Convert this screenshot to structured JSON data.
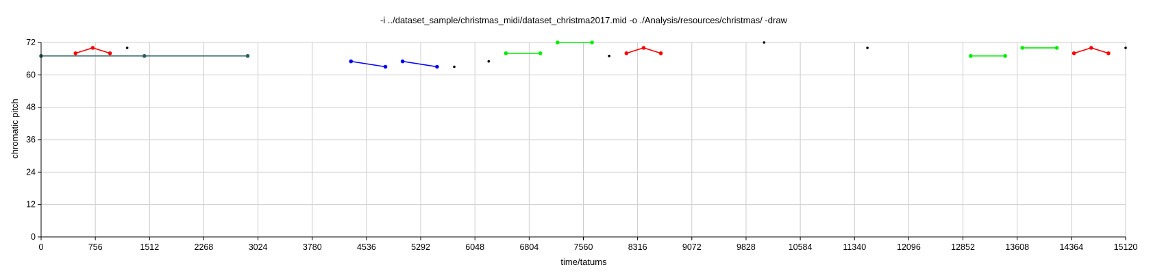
{
  "chart_data": {
    "type": "line",
    "title": "-i ../dataset_sample/christmas_midi/dataset_christma2017.mid -o ./Analysis/resources/christmas/ -draw",
    "xlabel": "time/tatums",
    "ylabel": "chromatic pitch",
    "xlim": [
      0,
      15120
    ],
    "ylim": [
      0,
      72
    ],
    "xticks": [
      0,
      756,
      1512,
      2268,
      3024,
      3780,
      4536,
      5292,
      6048,
      6804,
      7560,
      8316,
      9072,
      9828,
      10584,
      11340,
      12096,
      12852,
      13608,
      14364,
      15120
    ],
    "yticks": [
      0,
      12,
      24,
      36,
      48,
      60,
      72
    ],
    "grid": true,
    "series": [
      {
        "color": "#2f5f5f",
        "points": [
          [
            0,
            67
          ],
          [
            1440,
            67
          ],
          [
            2880,
            67
          ]
        ]
      },
      {
        "color": "#ff0000",
        "points": [
          [
            480,
            68
          ],
          [
            720,
            70
          ],
          [
            960,
            68
          ]
        ]
      },
      {
        "color": "#0000ff",
        "points": [
          [
            4320,
            65
          ],
          [
            4800,
            63
          ]
        ]
      },
      {
        "color": "#0000ff",
        "points": [
          [
            5040,
            65
          ],
          [
            5520,
            63
          ]
        ]
      },
      {
        "color": "#00ee00",
        "points": [
          [
            6480,
            68
          ],
          [
            6960,
            68
          ]
        ]
      },
      {
        "color": "#00ee00",
        "points": [
          [
            7200,
            72
          ],
          [
            7680,
            72
          ]
        ]
      },
      {
        "color": "#ff0000",
        "points": [
          [
            8160,
            68
          ],
          [
            8400,
            70
          ],
          [
            8640,
            68
          ]
        ]
      },
      {
        "color": "#00ee00",
        "points": [
          [
            12960,
            67
          ],
          [
            13440,
            67
          ]
        ]
      },
      {
        "color": "#00ee00",
        "points": [
          [
            13680,
            70
          ],
          [
            14160,
            70
          ]
        ]
      },
      {
        "color": "#ff0000",
        "points": [
          [
            14400,
            68
          ],
          [
            14640,
            70
          ],
          [
            14880,
            68
          ]
        ]
      }
    ],
    "isolated_points": {
      "color": "#000000",
      "points": [
        [
          1200,
          70
        ],
        [
          5760,
          63
        ],
        [
          6240,
          65
        ],
        [
          7920,
          67
        ],
        [
          10080,
          72
        ],
        [
          11520,
          70
        ],
        [
          15120,
          70
        ]
      ]
    }
  }
}
